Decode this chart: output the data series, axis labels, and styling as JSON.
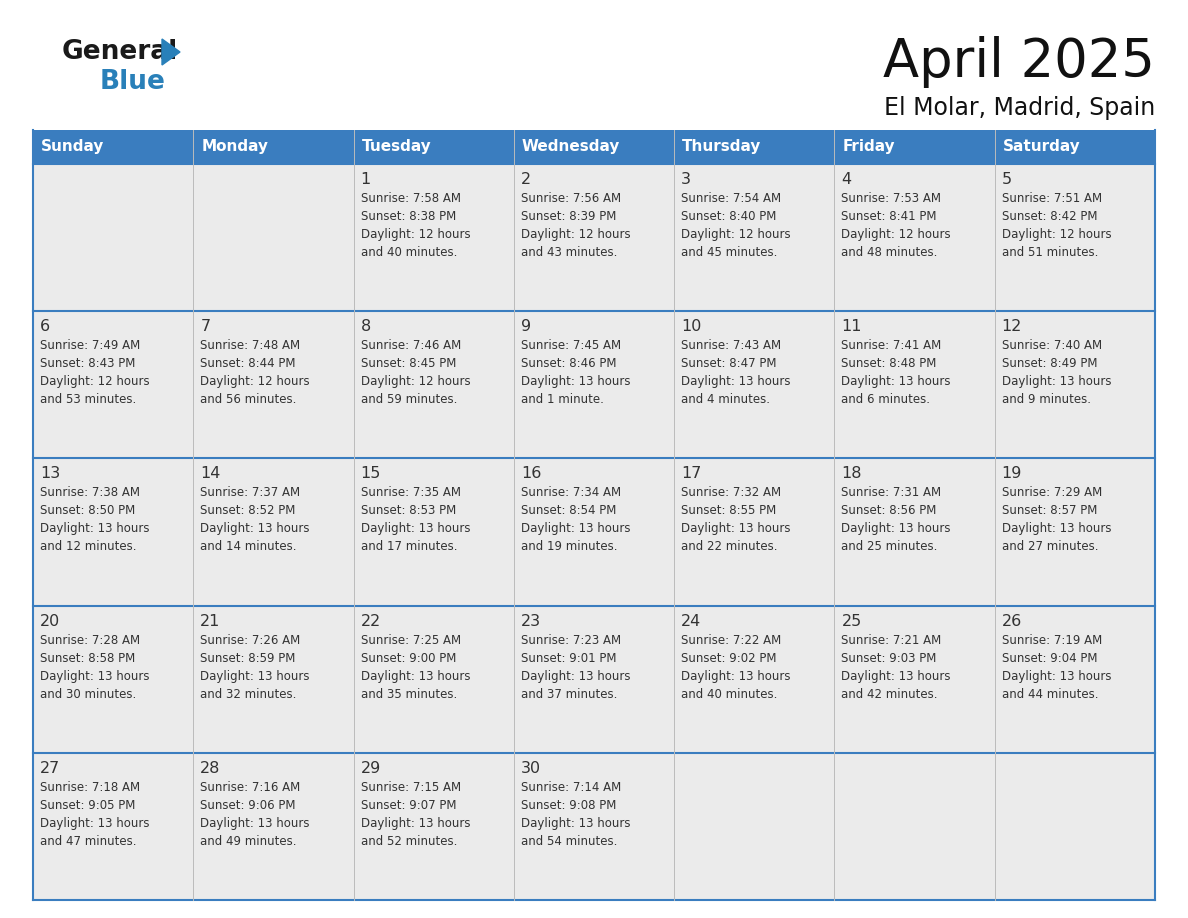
{
  "title": "April 2025",
  "subtitle": "El Molar, Madrid, Spain",
  "header_color": "#3a7dbf",
  "header_text_color": "#ffffff",
  "cell_bg_light": "#ebebeb",
  "cell_bg_white": "#ffffff",
  "border_color": "#3a7dbf",
  "text_color": "#333333",
  "day_headers": [
    "Sunday",
    "Monday",
    "Tuesday",
    "Wednesday",
    "Thursday",
    "Friday",
    "Saturday"
  ],
  "weeks": [
    [
      {
        "day": "",
        "info": ""
      },
      {
        "day": "",
        "info": ""
      },
      {
        "day": "1",
        "info": "Sunrise: 7:58 AM\nSunset: 8:38 PM\nDaylight: 12 hours\nand 40 minutes."
      },
      {
        "day": "2",
        "info": "Sunrise: 7:56 AM\nSunset: 8:39 PM\nDaylight: 12 hours\nand 43 minutes."
      },
      {
        "day": "3",
        "info": "Sunrise: 7:54 AM\nSunset: 8:40 PM\nDaylight: 12 hours\nand 45 minutes."
      },
      {
        "day": "4",
        "info": "Sunrise: 7:53 AM\nSunset: 8:41 PM\nDaylight: 12 hours\nand 48 minutes."
      },
      {
        "day": "5",
        "info": "Sunrise: 7:51 AM\nSunset: 8:42 PM\nDaylight: 12 hours\nand 51 minutes."
      }
    ],
    [
      {
        "day": "6",
        "info": "Sunrise: 7:49 AM\nSunset: 8:43 PM\nDaylight: 12 hours\nand 53 minutes."
      },
      {
        "day": "7",
        "info": "Sunrise: 7:48 AM\nSunset: 8:44 PM\nDaylight: 12 hours\nand 56 minutes."
      },
      {
        "day": "8",
        "info": "Sunrise: 7:46 AM\nSunset: 8:45 PM\nDaylight: 12 hours\nand 59 minutes."
      },
      {
        "day": "9",
        "info": "Sunrise: 7:45 AM\nSunset: 8:46 PM\nDaylight: 13 hours\nand 1 minute."
      },
      {
        "day": "10",
        "info": "Sunrise: 7:43 AM\nSunset: 8:47 PM\nDaylight: 13 hours\nand 4 minutes."
      },
      {
        "day": "11",
        "info": "Sunrise: 7:41 AM\nSunset: 8:48 PM\nDaylight: 13 hours\nand 6 minutes."
      },
      {
        "day": "12",
        "info": "Sunrise: 7:40 AM\nSunset: 8:49 PM\nDaylight: 13 hours\nand 9 minutes."
      }
    ],
    [
      {
        "day": "13",
        "info": "Sunrise: 7:38 AM\nSunset: 8:50 PM\nDaylight: 13 hours\nand 12 minutes."
      },
      {
        "day": "14",
        "info": "Sunrise: 7:37 AM\nSunset: 8:52 PM\nDaylight: 13 hours\nand 14 minutes."
      },
      {
        "day": "15",
        "info": "Sunrise: 7:35 AM\nSunset: 8:53 PM\nDaylight: 13 hours\nand 17 minutes."
      },
      {
        "day": "16",
        "info": "Sunrise: 7:34 AM\nSunset: 8:54 PM\nDaylight: 13 hours\nand 19 minutes."
      },
      {
        "day": "17",
        "info": "Sunrise: 7:32 AM\nSunset: 8:55 PM\nDaylight: 13 hours\nand 22 minutes."
      },
      {
        "day": "18",
        "info": "Sunrise: 7:31 AM\nSunset: 8:56 PM\nDaylight: 13 hours\nand 25 minutes."
      },
      {
        "day": "19",
        "info": "Sunrise: 7:29 AM\nSunset: 8:57 PM\nDaylight: 13 hours\nand 27 minutes."
      }
    ],
    [
      {
        "day": "20",
        "info": "Sunrise: 7:28 AM\nSunset: 8:58 PM\nDaylight: 13 hours\nand 30 minutes."
      },
      {
        "day": "21",
        "info": "Sunrise: 7:26 AM\nSunset: 8:59 PM\nDaylight: 13 hours\nand 32 minutes."
      },
      {
        "day": "22",
        "info": "Sunrise: 7:25 AM\nSunset: 9:00 PM\nDaylight: 13 hours\nand 35 minutes."
      },
      {
        "day": "23",
        "info": "Sunrise: 7:23 AM\nSunset: 9:01 PM\nDaylight: 13 hours\nand 37 minutes."
      },
      {
        "day": "24",
        "info": "Sunrise: 7:22 AM\nSunset: 9:02 PM\nDaylight: 13 hours\nand 40 minutes."
      },
      {
        "day": "25",
        "info": "Sunrise: 7:21 AM\nSunset: 9:03 PM\nDaylight: 13 hours\nand 42 minutes."
      },
      {
        "day": "26",
        "info": "Sunrise: 7:19 AM\nSunset: 9:04 PM\nDaylight: 13 hours\nand 44 minutes."
      }
    ],
    [
      {
        "day": "27",
        "info": "Sunrise: 7:18 AM\nSunset: 9:05 PM\nDaylight: 13 hours\nand 47 minutes."
      },
      {
        "day": "28",
        "info": "Sunrise: 7:16 AM\nSunset: 9:06 PM\nDaylight: 13 hours\nand 49 minutes."
      },
      {
        "day": "29",
        "info": "Sunrise: 7:15 AM\nSunset: 9:07 PM\nDaylight: 13 hours\nand 52 minutes."
      },
      {
        "day": "30",
        "info": "Sunrise: 7:14 AM\nSunset: 9:08 PM\nDaylight: 13 hours\nand 54 minutes."
      },
      {
        "day": "",
        "info": ""
      },
      {
        "day": "",
        "info": ""
      },
      {
        "day": "",
        "info": ""
      }
    ]
  ],
  "logo_text_general": "General",
  "logo_text_blue": "Blue",
  "logo_color_general": "#1a1a1a",
  "logo_color_blue": "#2980b9",
  "logo_triangle_color": "#2980b9",
  "fig_width": 11.88,
  "fig_height": 9.18,
  "dpi": 100
}
